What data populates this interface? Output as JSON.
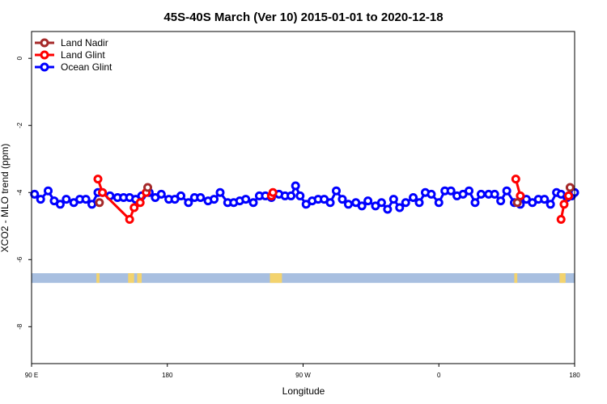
{
  "chart_data": {
    "type": "line",
    "title": "45S-40S March (Ver 10)   2015-01-01 to 2020-12-18",
    "xlabel": "Longitude",
    "ylabel": "XCO2 - MLO trend (ppm)",
    "xlim": [
      90,
      450
    ],
    "ylim": [
      -9.1,
      0.8
    ],
    "xticks": [
      {
        "value": 90,
        "label": "90 E"
      },
      {
        "value": 180,
        "label": "180"
      },
      {
        "value": 270,
        "label": "90 W"
      },
      {
        "value": 360,
        "label": "0"
      },
      {
        "value": 450,
        "label": "180"
      }
    ],
    "yticks": [
      {
        "value": 0,
        "label": "0"
      },
      {
        "value": -2,
        "label": "-2"
      },
      {
        "value": -4,
        "label": "-4"
      },
      {
        "value": -6,
        "label": "-6"
      },
      {
        "value": -8,
        "label": "-8"
      }
    ],
    "legend_position": "top-left",
    "series": [
      {
        "name": "Land Nadir",
        "color": "#a52a2a",
        "points": [
          [
            135,
            -4.3
          ],
          [
            167,
            -3.85
          ],
          [
            412,
            -4.3
          ],
          [
            447,
            -3.85
          ]
        ]
      },
      {
        "name": "Land Glint",
        "color": "#ff0000",
        "segments": [
          [
            [
              134,
              -3.6
            ],
            [
              137,
              -4.0
            ],
            [
              155,
              -4.8
            ],
            [
              158,
              -4.45
            ],
            [
              162,
              -4.3
            ],
            [
              166,
              -4.0
            ]
          ],
          [
            [
              249,
              -4.1
            ],
            [
              250,
              -4.0
            ]
          ],
          [
            [
              411,
              -3.6
            ],
            [
              414,
              -4.1
            ]
          ],
          [
            [
              441,
              -4.8
            ],
            [
              443,
              -4.35
            ],
            [
              446,
              -4.1
            ]
          ]
        ]
      },
      {
        "name": "Ocean Glint",
        "color": "#0000ff",
        "points": [
          [
            92,
            -4.05
          ],
          [
            96,
            -4.2
          ],
          [
            101,
            -3.95
          ],
          [
            105,
            -4.25
          ],
          [
            109,
            -4.35
          ],
          [
            113,
            -4.2
          ],
          [
            118,
            -4.3
          ],
          [
            122,
            -4.2
          ],
          [
            126,
            -4.2
          ],
          [
            130,
            -4.35
          ],
          [
            134,
            -4.0
          ],
          [
            137,
            -4.0
          ],
          [
            142,
            -4.1
          ],
          [
            147,
            -4.15
          ],
          [
            151,
            -4.15
          ],
          [
            155,
            -4.15
          ],
          [
            159,
            -4.2
          ],
          [
            163,
            -4.1
          ],
          [
            168,
            -4.0
          ],
          [
            172,
            -4.15
          ],
          [
            176,
            -4.05
          ],
          [
            181,
            -4.2
          ],
          [
            185,
            -4.2
          ],
          [
            189,
            -4.1
          ],
          [
            194,
            -4.3
          ],
          [
            198,
            -4.15
          ],
          [
            202,
            -4.15
          ],
          [
            207,
            -4.25
          ],
          [
            211,
            -4.2
          ],
          [
            215,
            -4.0
          ],
          [
            220,
            -4.3
          ],
          [
            224,
            -4.3
          ],
          [
            228,
            -4.25
          ],
          [
            232,
            -4.2
          ],
          [
            237,
            -4.3
          ],
          [
            241,
            -4.1
          ],
          [
            245,
            -4.1
          ],
          [
            249,
            -4.15
          ],
          [
            254,
            -4.05
          ],
          [
            258,
            -4.1
          ],
          [
            262,
            -4.1
          ],
          [
            265,
            -3.8
          ],
          [
            268,
            -4.1
          ],
          [
            272,
            -4.35
          ],
          [
            276,
            -4.25
          ],
          [
            280,
            -4.2
          ],
          [
            284,
            -4.2
          ],
          [
            288,
            -4.3
          ],
          [
            292,
            -3.95
          ],
          [
            296,
            -4.2
          ],
          [
            300,
            -4.35
          ],
          [
            305,
            -4.3
          ],
          [
            309,
            -4.4
          ],
          [
            313,
            -4.25
          ],
          [
            318,
            -4.4
          ],
          [
            322,
            -4.3
          ],
          [
            326,
            -4.5
          ],
          [
            330,
            -4.2
          ],
          [
            334,
            -4.45
          ],
          [
            338,
            -4.3
          ],
          [
            343,
            -4.15
          ],
          [
            347,
            -4.3
          ],
          [
            351,
            -4.0
          ],
          [
            355,
            -4.05
          ],
          [
            360,
            -4.3
          ],
          [
            364,
            -3.95
          ],
          [
            368,
            -3.95
          ],
          [
            372,
            -4.1
          ],
          [
            376,
            -4.05
          ],
          [
            380,
            -3.95
          ],
          [
            384,
            -4.3
          ],
          [
            388,
            -4.05
          ],
          [
            393,
            -4.05
          ],
          [
            397,
            -4.05
          ],
          [
            401,
            -4.25
          ],
          [
            405,
            -3.95
          ],
          [
            410,
            -4.3
          ],
          [
            414,
            -4.35
          ],
          [
            418,
            -4.2
          ],
          [
            422,
            -4.3
          ],
          [
            426,
            -4.2
          ],
          [
            430,
            -4.2
          ],
          [
            434,
            -4.35
          ],
          [
            438,
            -4.0
          ],
          [
            441,
            -4.05
          ],
          [
            445,
            -4.15
          ],
          [
            448,
            -4.1
          ],
          [
            450,
            -4.0
          ]
        ]
      }
    ],
    "land_strip": {
      "y": -6.55,
      "ocean_color": "#a8bfe0",
      "land_color": "#f3d36e",
      "land_ranges": [
        [
          133,
          135
        ],
        [
          154,
          158
        ],
        [
          160,
          163
        ],
        [
          248,
          256
        ],
        [
          410,
          412
        ],
        [
          440,
          444
        ]
      ]
    }
  }
}
